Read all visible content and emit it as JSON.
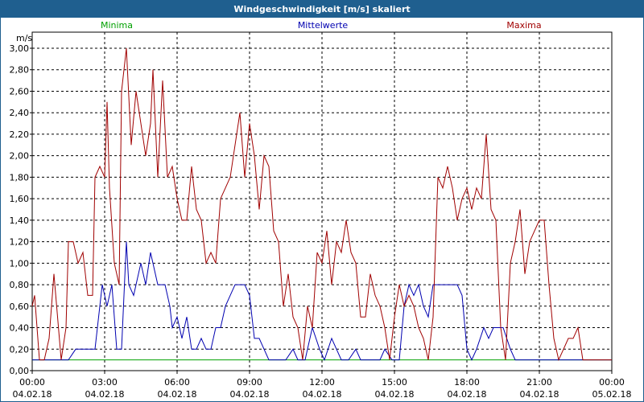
{
  "window": {
    "title": "Windgeschwindigkeit [m/s] skaliert"
  },
  "chart_data": {
    "type": "line",
    "title": "Windgeschwindigkeit [m/s] skaliert",
    "ylabel": "m/s",
    "ylim": [
      0,
      3.0
    ],
    "y_ticks": [
      "0,00",
      "0,20",
      "0,40",
      "0,60",
      "0,80",
      "1,00",
      "1,20",
      "1,40",
      "1,60",
      "1,80",
      "2,00",
      "2,20",
      "2,40",
      "2,60",
      "2,80",
      "3,00"
    ],
    "xlim_hours": [
      0,
      24
    ],
    "x_ticks": [
      {
        "time": "00:00",
        "date": "04.02.18"
      },
      {
        "time": "03:00",
        "date": "04.02.18"
      },
      {
        "time": "06:00",
        "date": "04.02.18"
      },
      {
        "time": "09:00",
        "date": "04.02.18"
      },
      {
        "time": "12:00",
        "date": "04.02.18"
      },
      {
        "time": "15:00",
        "date": "04.02.18"
      },
      {
        "time": "18:00",
        "date": "04.02.18"
      },
      {
        "time": "21:00",
        "date": "04.02.18"
      },
      {
        "time": "00:00",
        "date": "05.02.18"
      }
    ],
    "grid": true,
    "legend_position": "top",
    "series": [
      {
        "name": "Minima",
        "color": "#00a000",
        "points": [
          [
            0,
            0.1
          ],
          [
            24,
            0.1
          ]
        ]
      },
      {
        "name": "Mittelwerte",
        "color": "#0000b0",
        "points": [
          [
            0,
            0.1
          ],
          [
            1.0,
            0.1
          ],
          [
            1.5,
            0.1
          ],
          [
            1.8,
            0.2
          ],
          [
            2.6,
            0.2
          ],
          [
            2.9,
            0.8
          ],
          [
            3.1,
            0.6
          ],
          [
            3.3,
            0.8
          ],
          [
            3.5,
            0.2
          ],
          [
            3.7,
            0.2
          ],
          [
            3.9,
            1.2
          ],
          [
            4.0,
            0.8
          ],
          [
            4.2,
            0.7
          ],
          [
            4.5,
            1.0
          ],
          [
            4.7,
            0.8
          ],
          [
            4.9,
            1.1
          ],
          [
            5.2,
            0.8
          ],
          [
            5.5,
            0.8
          ],
          [
            5.7,
            0.6
          ],
          [
            5.8,
            0.4
          ],
          [
            6.0,
            0.5
          ],
          [
            6.2,
            0.3
          ],
          [
            6.4,
            0.5
          ],
          [
            6.6,
            0.2
          ],
          [
            6.8,
            0.2
          ],
          [
            7.0,
            0.3
          ],
          [
            7.2,
            0.2
          ],
          [
            7.4,
            0.2
          ],
          [
            7.6,
            0.4
          ],
          [
            7.8,
            0.4
          ],
          [
            8.0,
            0.6
          ],
          [
            8.2,
            0.7
          ],
          [
            8.4,
            0.8
          ],
          [
            8.6,
            0.8
          ],
          [
            8.8,
            0.8
          ],
          [
            9.0,
            0.7
          ],
          [
            9.2,
            0.3
          ],
          [
            9.4,
            0.3
          ],
          [
            9.6,
            0.2
          ],
          [
            9.8,
            0.1
          ],
          [
            10.0,
            0.1
          ],
          [
            10.5,
            0.1
          ],
          [
            10.8,
            0.2
          ],
          [
            11.0,
            0.1
          ],
          [
            11.3,
            0.1
          ],
          [
            11.6,
            0.4
          ],
          [
            11.9,
            0.2
          ],
          [
            12.1,
            0.1
          ],
          [
            12.4,
            0.3
          ],
          [
            12.6,
            0.2
          ],
          [
            12.8,
            0.1
          ],
          [
            13.1,
            0.1
          ],
          [
            13.4,
            0.2
          ],
          [
            13.6,
            0.1
          ],
          [
            14.0,
            0.1
          ],
          [
            14.4,
            0.1
          ],
          [
            14.6,
            0.2
          ],
          [
            14.9,
            0.1
          ],
          [
            15.2,
            0.1
          ],
          [
            15.4,
            0.6
          ],
          [
            15.6,
            0.8
          ],
          [
            15.8,
            0.7
          ],
          [
            16.0,
            0.8
          ],
          [
            16.2,
            0.6
          ],
          [
            16.4,
            0.5
          ],
          [
            16.6,
            0.8
          ],
          [
            16.9,
            0.8
          ],
          [
            17.2,
            0.8
          ],
          [
            17.6,
            0.8
          ],
          [
            17.8,
            0.7
          ],
          [
            18.0,
            0.2
          ],
          [
            18.2,
            0.1
          ],
          [
            18.4,
            0.2
          ],
          [
            18.7,
            0.4
          ],
          [
            18.9,
            0.3
          ],
          [
            19.1,
            0.4
          ],
          [
            19.5,
            0.4
          ],
          [
            19.8,
            0.2
          ],
          [
            20.0,
            0.1
          ],
          [
            24,
            0.1
          ]
        ]
      },
      {
        "name": "Maxima",
        "color": "#a00000",
        "points": [
          [
            0,
            0.6
          ],
          [
            0.1,
            0.7
          ],
          [
            0.3,
            0.1
          ],
          [
            0.5,
            0.1
          ],
          [
            0.7,
            0.3
          ],
          [
            0.9,
            0.9
          ],
          [
            1.2,
            0.1
          ],
          [
            1.4,
            0.4
          ],
          [
            1.5,
            1.2
          ],
          [
            1.7,
            1.2
          ],
          [
            1.9,
            1.0
          ],
          [
            2.1,
            1.1
          ],
          [
            2.3,
            0.7
          ],
          [
            2.5,
            0.7
          ],
          [
            2.6,
            1.8
          ],
          [
            2.8,
            1.9
          ],
          [
            3.0,
            1.8
          ],
          [
            3.1,
            2.5
          ],
          [
            3.2,
            1.7
          ],
          [
            3.4,
            1.0
          ],
          [
            3.6,
            0.8
          ],
          [
            3.7,
            2.6
          ],
          [
            3.9,
            3.0
          ],
          [
            4.1,
            2.1
          ],
          [
            4.3,
            2.6
          ],
          [
            4.5,
            2.3
          ],
          [
            4.7,
            2.0
          ],
          [
            4.9,
            2.3
          ],
          [
            5.0,
            2.8
          ],
          [
            5.2,
            1.8
          ],
          [
            5.4,
            2.7
          ],
          [
            5.6,
            1.8
          ],
          [
            5.8,
            1.9
          ],
          [
            6.0,
            1.6
          ],
          [
            6.2,
            1.4
          ],
          [
            6.4,
            1.4
          ],
          [
            6.6,
            1.9
          ],
          [
            6.8,
            1.5
          ],
          [
            7.0,
            1.4
          ],
          [
            7.2,
            1.0
          ],
          [
            7.4,
            1.1
          ],
          [
            7.6,
            1.0
          ],
          [
            7.8,
            1.6
          ],
          [
            8.0,
            1.7
          ],
          [
            8.2,
            1.8
          ],
          [
            8.4,
            2.1
          ],
          [
            8.6,
            2.4
          ],
          [
            8.8,
            1.8
          ],
          [
            9.0,
            2.3
          ],
          [
            9.2,
            2.0
          ],
          [
            9.4,
            1.5
          ],
          [
            9.6,
            2.0
          ],
          [
            9.8,
            1.9
          ],
          [
            10.0,
            1.3
          ],
          [
            10.2,
            1.2
          ],
          [
            10.4,
            0.6
          ],
          [
            10.6,
            0.9
          ],
          [
            10.8,
            0.5
          ],
          [
            11.0,
            0.4
          ],
          [
            11.2,
            0.1
          ],
          [
            11.4,
            0.6
          ],
          [
            11.6,
            0.4
          ],
          [
            11.8,
            1.1
          ],
          [
            12.0,
            1.0
          ],
          [
            12.2,
            1.3
          ],
          [
            12.4,
            0.8
          ],
          [
            12.6,
            1.2
          ],
          [
            12.8,
            1.1
          ],
          [
            13.0,
            1.4
          ],
          [
            13.2,
            1.1
          ],
          [
            13.4,
            1.0
          ],
          [
            13.6,
            0.5
          ],
          [
            13.8,
            0.5
          ],
          [
            14.0,
            0.9
          ],
          [
            14.2,
            0.7
          ],
          [
            14.4,
            0.6
          ],
          [
            14.6,
            0.4
          ],
          [
            14.8,
            0.1
          ],
          [
            15.0,
            0.5
          ],
          [
            15.2,
            0.8
          ],
          [
            15.4,
            0.6
          ],
          [
            15.6,
            0.7
          ],
          [
            15.8,
            0.6
          ],
          [
            16.0,
            0.4
          ],
          [
            16.2,
            0.3
          ],
          [
            16.4,
            0.1
          ],
          [
            16.6,
            0.5
          ],
          [
            16.8,
            1.8
          ],
          [
            17.0,
            1.7
          ],
          [
            17.2,
            1.9
          ],
          [
            17.4,
            1.7
          ],
          [
            17.6,
            1.4
          ],
          [
            17.8,
            1.6
          ],
          [
            18.0,
            1.7
          ],
          [
            18.2,
            1.5
          ],
          [
            18.4,
            1.7
          ],
          [
            18.6,
            1.6
          ],
          [
            18.8,
            2.2
          ],
          [
            19.0,
            1.5
          ],
          [
            19.2,
            1.4
          ],
          [
            19.4,
            0.4
          ],
          [
            19.6,
            0.1
          ],
          [
            19.8,
            1.0
          ],
          [
            20.0,
            1.2
          ],
          [
            20.2,
            1.5
          ],
          [
            20.4,
            0.9
          ],
          [
            20.6,
            1.2
          ],
          [
            20.8,
            1.3
          ],
          [
            21.0,
            1.4
          ],
          [
            21.2,
            1.4
          ],
          [
            21.4,
            0.8
          ],
          [
            21.6,
            0.3
          ],
          [
            21.8,
            0.1
          ],
          [
            22.0,
            0.2
          ],
          [
            22.2,
            0.3
          ],
          [
            22.4,
            0.3
          ],
          [
            22.6,
            0.4
          ],
          [
            22.8,
            0.1
          ],
          [
            24,
            0.1
          ]
        ]
      }
    ]
  }
}
